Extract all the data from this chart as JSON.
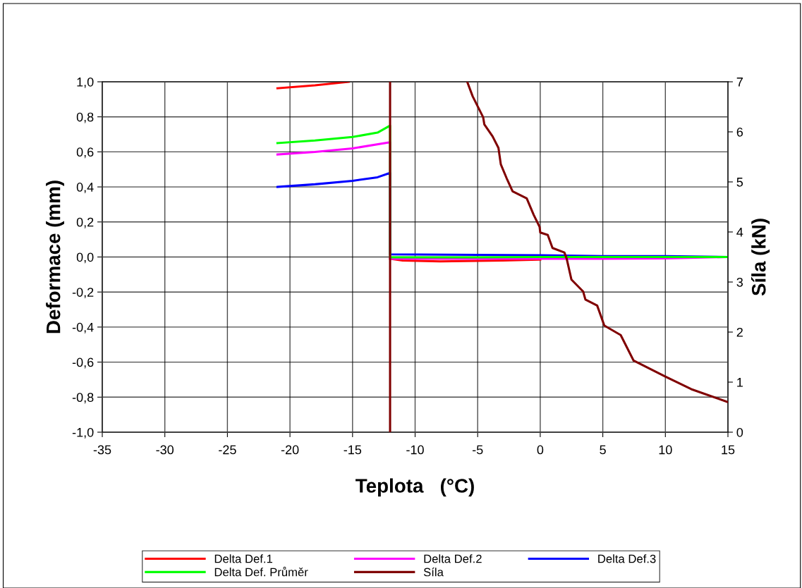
{
  "chart_data": {
    "type": "line",
    "xlabel": "Teplota   (°C)",
    "ylabel": "Deformace (mm)",
    "y2label": "Síla (kN)",
    "xlim": [
      -35,
      15
    ],
    "xticks": [
      -35,
      -30,
      -25,
      -20,
      -15,
      -10,
      -5,
      0,
      5,
      10,
      15
    ],
    "ylim": [
      -1.0,
      1.0
    ],
    "yticks": [
      {
        "value": -1.0,
        "label": "-1,0"
      },
      {
        "value": -0.8,
        "label": "-0,8"
      },
      {
        "value": -0.6,
        "label": "-0,6"
      },
      {
        "value": -0.4,
        "label": "-0,4"
      },
      {
        "value": -0.2,
        "label": "-0,2"
      },
      {
        "value": 0.0,
        "label": "0,0"
      },
      {
        "value": 0.2,
        "label": "0,2"
      },
      {
        "value": 0.4,
        "label": "0,4"
      },
      {
        "value": 0.6,
        "label": "0,6"
      },
      {
        "value": 0.8,
        "label": "0,8"
      },
      {
        "value": 1.0,
        "label": "1,0"
      }
    ],
    "y2lim": [
      0,
      7
    ],
    "y2ticks": [
      0,
      1,
      2,
      3,
      4,
      5,
      6,
      7
    ],
    "grid": true,
    "legend": "bottom",
    "marker": "none",
    "line_style": "solid",
    "series": [
      {
        "name": "Delta Def.1",
        "color": "#ff0000",
        "x": [
          -21,
          -18,
          -15.3,
          -13,
          -12,
          -11,
          -8,
          -3,
          0
        ],
        "values": [
          0.963,
          0.98,
          1.0,
          null,
          -0.01,
          -0.02,
          -0.025,
          -0.02,
          -0.015
        ]
      },
      {
        "name": "Delta Def.2",
        "color": "#ff00ff",
        "x": [
          -21,
          -18,
          -15,
          -12,
          -12,
          -8,
          -3,
          0,
          5,
          10,
          15
        ],
        "values": [
          0.585,
          0.6,
          0.62,
          0.655,
          -0.01,
          -0.01,
          -0.01,
          -0.01,
          -0.01,
          -0.008,
          0.0
        ]
      },
      {
        "name": "Delta Def.3",
        "color": "#0000ff",
        "x": [
          -21,
          -18,
          -15,
          -13,
          -12,
          -12,
          -5,
          0,
          5,
          10,
          15
        ],
        "values": [
          0.4,
          0.415,
          0.435,
          0.455,
          0.48,
          0.015,
          0.012,
          0.01,
          0.005,
          0.005,
          0.0
        ]
      },
      {
        "name": "Delta Def. Průměr",
        "color": "#00ff00",
        "x": [
          -21,
          -18,
          -15,
          -13,
          -12,
          -12,
          -5,
          0,
          5,
          10,
          15
        ],
        "values": [
          0.65,
          0.665,
          0.685,
          0.71,
          0.75,
          -0.002,
          -0.002,
          0.0,
          0.0,
          0.0,
          0.0
        ]
      },
      {
        "name": "Síla",
        "color": "#800000",
        "axis": "y2",
        "x": [
          -12,
          -12,
          -9,
          -5.82,
          -5.4,
          -4.56,
          -4.47,
          -3.81,
          -3.34,
          -3.15,
          -2.68,
          -2.21,
          -1.08,
          -0.52,
          -0.05,
          0.0,
          0.6,
          0.98,
          1.93,
          2.11,
          2.49,
          3.43,
          3.61,
          4.55,
          5.12,
          6.43,
          7.46,
          10.0,
          12.07,
          15.0
        ],
        "values": [
          0,
          7,
          null,
          6.99,
          6.71,
          6.29,
          6.15,
          5.91,
          5.68,
          5.35,
          5.07,
          4.81,
          4.67,
          4.34,
          4.1,
          3.99,
          3.94,
          3.68,
          3.59,
          3.47,
          3.05,
          2.81,
          2.65,
          2.53,
          2.13,
          1.94,
          1.43,
          1.11,
          0.86,
          0.6
        ]
      }
    ]
  }
}
